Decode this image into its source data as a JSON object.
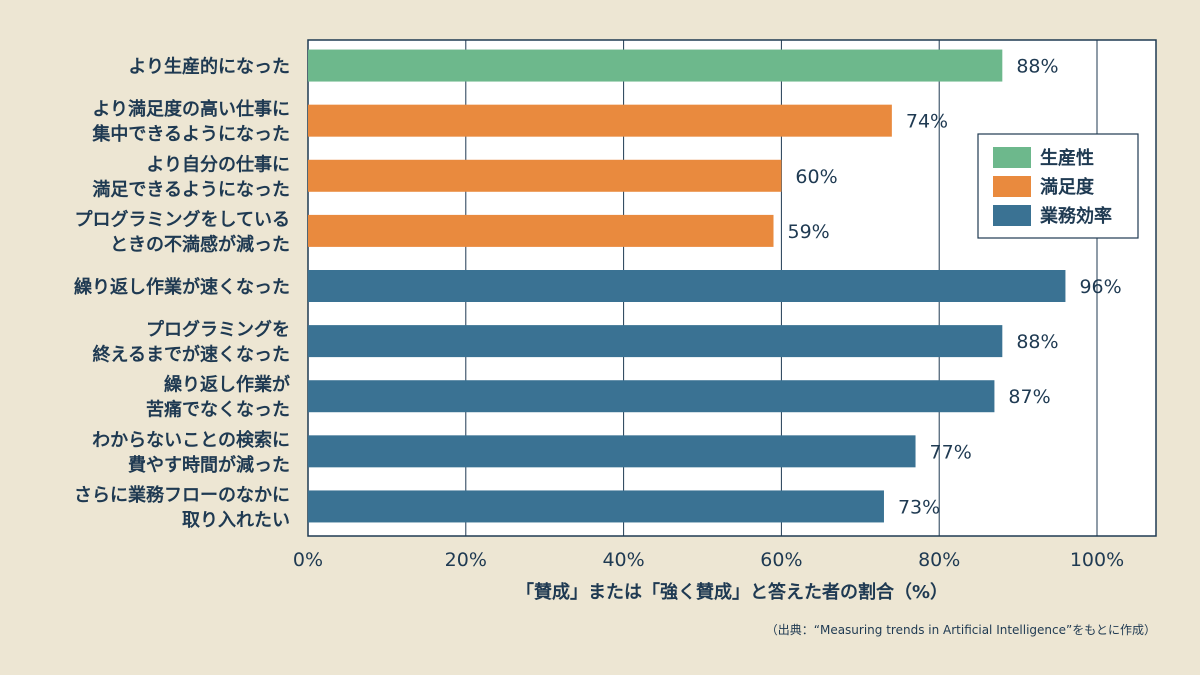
{
  "chart_data": {
    "type": "bar",
    "orientation": "horizontal",
    "xlabel": "「賛成」または「強く賛成」と答えた者の割合（%）",
    "xlim": [
      0,
      100
    ],
    "ticks": [
      "0%",
      "20%",
      "40%",
      "60%",
      "80%",
      "100%"
    ],
    "grid": true,
    "legend_position": "right",
    "source": "（出典：“Measuring trends in Artificial Intelligence”をもとに作成）",
    "groups": [
      {
        "name": "生産性",
        "color": "#6db88c"
      },
      {
        "name": "満足度",
        "color": "#e98a3e"
      },
      {
        "name": "業務効率",
        "color": "#3a7293"
      }
    ],
    "bars": [
      {
        "label": [
          "より生産的になった"
        ],
        "value": 88,
        "value_label": "88%",
        "group": 0
      },
      {
        "label": [
          "より満足度の高い仕事に",
          "集中できるようになった"
        ],
        "value": 74,
        "value_label": "74%",
        "group": 1
      },
      {
        "label": [
          "より自分の仕事に",
          "満足できるようになった"
        ],
        "value": 60,
        "value_label": "60%",
        "group": 1
      },
      {
        "label": [
          "プログラミングをしている",
          "ときの不満感が減った"
        ],
        "value": 59,
        "value_label": "59%",
        "group": 1
      },
      {
        "label": [
          "繰り返し作業が速くなった"
        ],
        "value": 96,
        "value_label": "96%",
        "group": 2
      },
      {
        "label": [
          "プログラミングを",
          "終えるまでが速くなった"
        ],
        "value": 88,
        "value_label": "88%",
        "group": 2
      },
      {
        "label": [
          "繰り返し作業が",
          "苦痛でなくなった"
        ],
        "value": 87,
        "value_label": "87%",
        "group": 2
      },
      {
        "label": [
          "わからないことの検索に",
          "費やす時間が減った"
        ],
        "value": 77,
        "value_label": "77%",
        "group": 2
      },
      {
        "label": [
          "さらに業務フローのなかに",
          "取り入れたい"
        ],
        "value": 73,
        "value_label": "73%",
        "group": 2
      }
    ]
  }
}
